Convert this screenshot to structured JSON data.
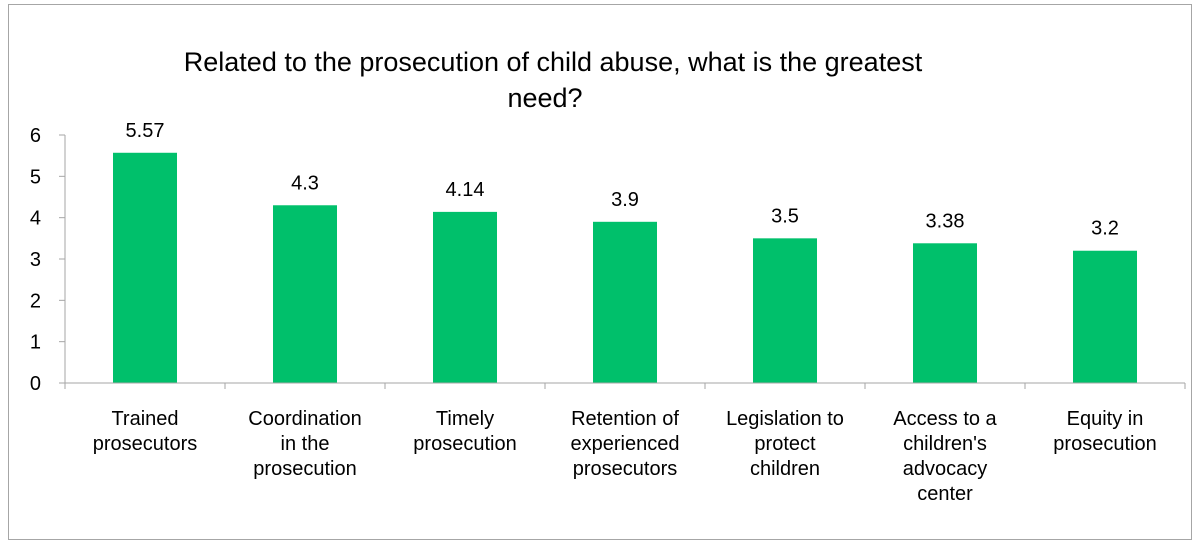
{
  "chart_data": {
    "type": "bar",
    "title_lines": [
      "Related to the prosecution of child abuse, what is the greatest",
      "need?"
    ],
    "categories": [
      [
        "Trained",
        "prosecutors"
      ],
      [
        "Coordination",
        "in the",
        "prosecution"
      ],
      [
        "Timely",
        "prosecution"
      ],
      [
        "Retention of",
        "experienced",
        "prosecutors"
      ],
      [
        "Legislation to",
        "protect",
        "children"
      ],
      [
        "Access to a",
        "children's",
        "advocacy",
        "center"
      ],
      [
        "Equity in",
        "prosecution"
      ]
    ],
    "values": [
      5.57,
      4.3,
      4.14,
      3.9,
      3.5,
      3.38,
      3.2
    ],
    "data_labels": [
      "5.57",
      "4.3",
      "4.14",
      "3.9",
      "3.5",
      "3.38",
      "3.2"
    ],
    "yticks": [
      "0",
      "1",
      "2",
      "3",
      "4",
      "5",
      "6"
    ],
    "ylim": [
      0,
      6
    ],
    "grid": false,
    "bar_color": "#00c06b",
    "axis_color": "#a6a6a6"
  }
}
